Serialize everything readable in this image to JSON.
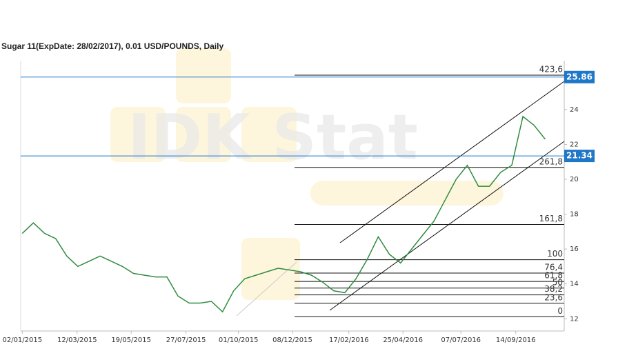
{
  "chart_data": {
    "type": "line",
    "title": "Sugar 11(ExpDate: 28/02/2017), 0.01 USD/POUNDS, Daily",
    "watermark": "IDK Stat",
    "x": [
      "02/01/2015",
      "16/01/2015",
      "30/01/2015",
      "13/02/2015",
      "27/02/2015",
      "13/03/2015",
      "27/03/2015",
      "10/04/2015",
      "24/04/2015",
      "08/05/2015",
      "22/05/2015",
      "05/06/2015",
      "19/06/2015",
      "03/07/2015",
      "17/07/2015",
      "31/07/2015",
      "14/08/2015",
      "28/08/2015",
      "11/09/2015",
      "25/09/2015",
      "09/10/2015",
      "23/10/2015",
      "06/11/2015",
      "20/11/2015",
      "04/12/2015",
      "18/12/2015",
      "01/01/2016",
      "15/01/2016",
      "29/01/2016",
      "12/02/2016",
      "26/02/2016",
      "11/03/2016",
      "25/03/2016",
      "08/04/2016",
      "22/04/2016",
      "06/05/2016",
      "20/05/2016",
      "03/06/2016",
      "17/06/2016",
      "01/07/2016",
      "15/07/2016",
      "29/07/2016",
      "12/08/2016",
      "26/08/2016",
      "09/09/2016",
      "23/09/2016",
      "07/10/2016",
      "21/10/2016"
    ],
    "series": [
      {
        "name": "Sugar 11",
        "color": "#2e8b3e",
        "values": [
          16.9,
          17.5,
          16.9,
          16.6,
          15.6,
          15.0,
          15.3,
          15.6,
          15.3,
          15.0,
          14.6,
          14.5,
          14.4,
          14.4,
          13.3,
          12.9,
          12.9,
          13.0,
          12.4,
          13.6,
          14.3,
          14.5,
          14.7,
          14.9,
          14.8,
          14.7,
          14.5,
          14.1,
          13.6,
          13.5,
          14.3,
          15.4,
          16.7,
          15.7,
          15.2,
          16.0,
          16.8,
          17.6,
          18.8,
          20.0,
          20.8,
          19.6,
          19.6,
          20.4,
          20.8,
          23.6,
          23.1,
          22.3
        ]
      }
    ],
    "xlim": [
      "31/12/2014",
      "14/11/2016"
    ],
    "xticks": [
      "02/01/2015",
      "12/03/2015",
      "19/05/2015",
      "27/07/2015",
      "01/10/2015",
      "08/12/2015",
      "17/02/2016",
      "25/04/2016",
      "07/07/2016",
      "14/09/2016"
    ],
    "ylim": [
      11.3,
      26.8
    ],
    "yticks": [
      12,
      14,
      16,
      18,
      20,
      22,
      24
    ],
    "price_lines": [
      25.86,
      21.34
    ],
    "price_line_color": "#1f77c8",
    "fib_levels": [
      {
        "value": 25.97,
        "label": "423,6"
      },
      {
        "value": 20.68,
        "label": "261,8"
      },
      {
        "value": 17.41,
        "label": "161,8"
      },
      {
        "value": 15.39,
        "label": "100"
      },
      {
        "value": 14.62,
        "label": "76,4"
      },
      {
        "value": 14.14,
        "label": "61,8"
      },
      {
        "value": 13.76,
        "label": "50"
      },
      {
        "value": 13.37,
        "label": "38,2"
      },
      {
        "value": 12.89,
        "label": "23,6"
      },
      {
        "value": 12.12,
        "label": "0"
      }
    ]
  }
}
